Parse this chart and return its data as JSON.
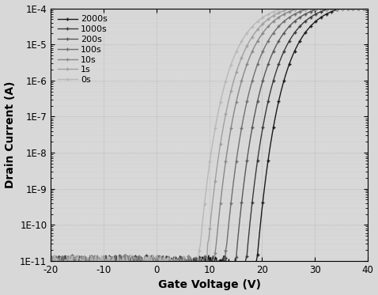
{
  "xlabel": "Gate Voltage (V)",
  "ylabel": "Drain Current (A)",
  "xlim": [
    -20,
    40
  ],
  "ylim_log": [
    -11,
    -4
  ],
  "background_color": "#d8d8d8",
  "series": [
    {
      "label": "2000s",
      "vth": 19.0,
      "color": "#1a1a1a",
      "lw": 1.0
    },
    {
      "label": "1000s",
      "vth": 17.0,
      "color": "#3a3a3a",
      "lw": 1.0
    },
    {
      "label": "200s",
      "vth": 15.0,
      "color": "#585858",
      "lw": 1.0
    },
    {
      "label": "100s",
      "vth": 13.0,
      "color": "#707070",
      "lw": 1.0
    },
    {
      "label": "10s",
      "vth": 11.0,
      "color": "#888888",
      "lw": 1.0
    },
    {
      "label": "1s",
      "vth": 9.5,
      "color": "#a0a0a0",
      "lw": 1.0
    },
    {
      "label": "0s",
      "vth": 8.0,
      "color": "#b8b8b8",
      "lw": 1.0
    }
  ],
  "I_off": 9e-12,
  "I_on": 0.00015,
  "SS": 1.6,
  "marker": "+",
  "marker_size": 3.5,
  "marker_every": 5,
  "legend_fontsize": 8,
  "axis_fontsize": 10,
  "tick_fontsize": 8.5,
  "ytick_vals": [
    1e-11,
    1e-10,
    1e-09,
    1e-08,
    1e-07,
    1e-06,
    1e-05,
    0.0001
  ],
  "ytick_labels": [
    "1E-11",
    "1E-10",
    "1E-9",
    "1E-8",
    "1E-7",
    "1E-6",
    "1E-5",
    "1E-4"
  ],
  "xtick_vals": [
    -20,
    -10,
    0,
    10,
    20,
    30,
    40
  ]
}
